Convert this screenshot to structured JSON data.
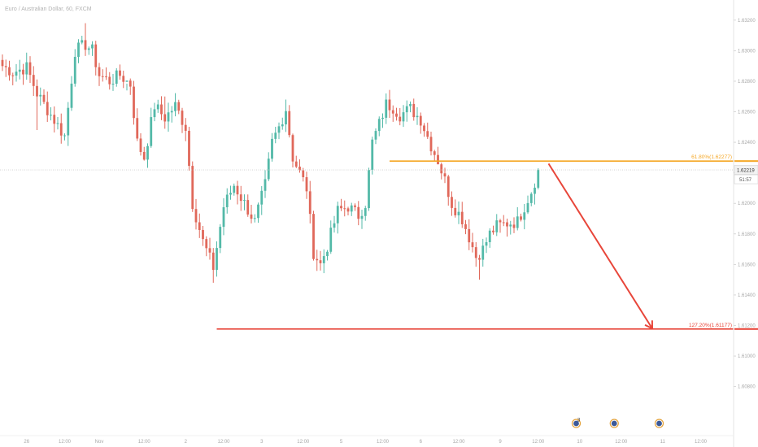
{
  "legend": {
    "symbol_label": "Euro / Australian Dollar, 60, FXCM"
  },
  "current_price": {
    "label": "1.62219",
    "countdown": "51:57",
    "value": 1.62219
  },
  "colors": {
    "up": "#53b9a8",
    "down": "#e0685a",
    "fib_618": "#f5a623",
    "fib_1272": "#e8463a",
    "arrow": "#e8463a",
    "price_line": "#cccccc",
    "axis_bg": "#ffffff",
    "badge_bg": "#3b5998"
  },
  "icons": {
    "event_markers": "event-flag-icon",
    "arrow": "forecast-arrow-icon"
  },
  "chart_data": {
    "type": "candlestick",
    "y_axis": {
      "min": 1.605,
      "max": 1.633,
      "ticks": [
        1.632,
        1.63,
        1.628,
        1.626,
        1.624,
        1.622,
        1.62,
        1.618,
        1.616,
        1.614,
        1.612,
        1.61,
        1.608
      ],
      "tick_labels": [
        "1.63200",
        "1.63000",
        "1.62800",
        "1.62600",
        "1.62400",
        "1.62200",
        "1.62000",
        "1.61800",
        "1.61600",
        "1.61400",
        "1.61200",
        "1.61000",
        "1.60800"
      ]
    },
    "x_axis": {
      "labels": [
        {
          "label": "26",
          "index": 7
        },
        {
          "label": "12:00",
          "index": 18
        },
        {
          "label": "Nov",
          "index": 28
        },
        {
          "label": "12:00",
          "index": 41
        },
        {
          "label": "2",
          "index": 53
        },
        {
          "label": "12:00",
          "index": 64
        },
        {
          "label": "3",
          "index": 75
        },
        {
          "label": "12:00",
          "index": 87
        },
        {
          "label": "5",
          "index": 98
        },
        {
          "label": "12:00",
          "index": 110
        },
        {
          "label": "6",
          "index": 121
        },
        {
          "label": "12:00",
          "index": 132
        },
        {
          "label": "9",
          "index": 144
        },
        {
          "label": "12:00",
          "index": 155
        }
      ],
      "future_labels": [
        {
          "label": "10",
          "index": 167
        },
        {
          "label": "12:00",
          "index": 179
        },
        {
          "label": "11",
          "index": 191
        },
        {
          "label": "12:00",
          "index": 202
        }
      ]
    },
    "fib_levels": [
      {
        "label": "61.80%(1.62277)",
        "value": 1.62277,
        "start_index": 112,
        "color": "fib_618"
      },
      {
        "label": "127.20%(1.61177)",
        "value": 1.61177,
        "start_index": 62,
        "color": "fib_1272"
      }
    ],
    "arrow": {
      "from_index": 158,
      "from_value": 1.6226,
      "to_index": 188,
      "to_value": 1.6118
    },
    "event_markers": [
      {
        "index": 166,
        "count": "3"
      },
      {
        "index": 177,
        "count": ""
      },
      {
        "index": 190,
        "count": ""
      }
    ],
    "anchors": [
      [
        0,
        1.629
      ],
      [
        3,
        1.6286
      ],
      [
        7,
        1.6289
      ],
      [
        10,
        1.6272
      ],
      [
        14,
        1.6258
      ],
      [
        18,
        1.6244
      ],
      [
        21,
        1.63
      ],
      [
        24,
        1.6304
      ],
      [
        26,
        1.63
      ],
      [
        28,
        1.6284
      ],
      [
        31,
        1.628
      ],
      [
        34,
        1.6284
      ],
      [
        37,
        1.6278
      ],
      [
        39,
        1.624
      ],
      [
        41,
        1.623
      ],
      [
        44,
        1.6264
      ],
      [
        47,
        1.6256
      ],
      [
        50,
        1.6264
      ],
      [
        53,
        1.625
      ],
      [
        55,
        1.62
      ],
      [
        58,
        1.6175
      ],
      [
        61,
        1.6158
      ],
      [
        64,
        1.6198
      ],
      [
        67,
        1.6212
      ],
      [
        70,
        1.62
      ],
      [
        73,
        1.6188
      ],
      [
        76,
        1.6212
      ],
      [
        78,
        1.624
      ],
      [
        80,
        1.625
      ],
      [
        82,
        1.6262
      ],
      [
        84,
        1.623
      ],
      [
        86,
        1.622
      ],
      [
        88,
        1.621
      ],
      [
        90,
        1.6168
      ],
      [
        92,
        1.616
      ],
      [
        94,
        1.6172
      ],
      [
        97,
        1.6195
      ],
      [
        100,
        1.6198
      ],
      [
        103,
        1.6192
      ],
      [
        105,
        1.62
      ],
      [
        107,
        1.624
      ],
      [
        109,
        1.6252
      ],
      [
        111,
        1.6265
      ],
      [
        113,
        1.6263
      ],
      [
        115,
        1.6258
      ],
      [
        118,
        1.6262
      ],
      [
        121,
        1.6255
      ],
      [
        124,
        1.6238
      ],
      [
        126,
        1.6228
      ],
      [
        128,
        1.6215
      ],
      [
        130,
        1.62
      ],
      [
        133,
        1.619
      ],
      [
        135,
        1.6178
      ],
      [
        137,
        1.6165
      ],
      [
        139,
        1.617
      ],
      [
        141,
        1.618
      ],
      [
        143,
        1.6185
      ],
      [
        146,
        1.6187
      ],
      [
        149,
        1.6188
      ],
      [
        151,
        1.6198
      ],
      [
        153,
        1.6208
      ],
      [
        155,
        1.6221
      ]
    ],
    "spikes": [
      [
        24,
        1.6318,
        "high"
      ],
      [
        10,
        1.6248,
        "low"
      ],
      [
        41,
        1.6228,
        "low"
      ],
      [
        61,
        1.6148,
        "low"
      ],
      [
        82,
        1.6268,
        "high"
      ],
      [
        92,
        1.6156,
        "low"
      ],
      [
        111,
        1.6272,
        "high"
      ],
      [
        138,
        1.615,
        "low"
      ],
      [
        126,
        1.6226,
        "low"
      ],
      [
        36,
        1.6274,
        "high"
      ],
      [
        47,
        1.627,
        "high"
      ]
    ]
  }
}
